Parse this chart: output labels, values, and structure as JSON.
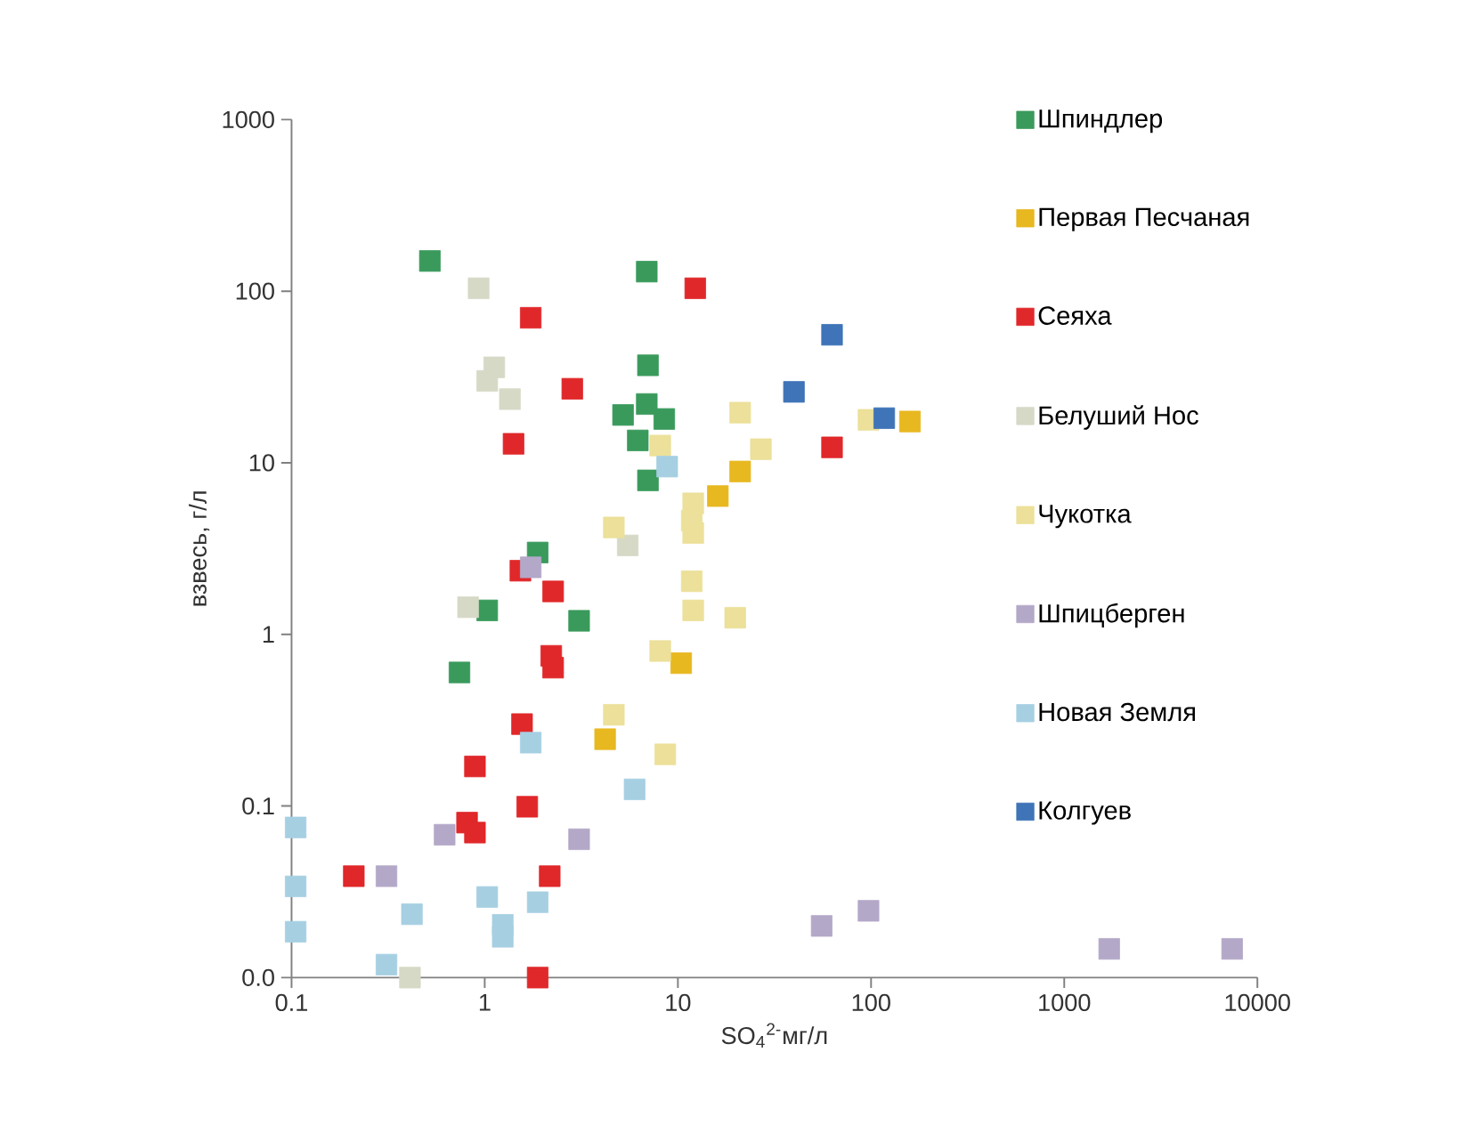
{
  "chart_data": {
    "type": "scatter",
    "xlabel": "SO$_{4}$$^{2-}$мг/л",
    "ylabel": "взвесь, г/л",
    "log": "xy",
    "xlim": [
      0.1,
      10000
    ],
    "ylim": [
      0.01,
      1000
    ],
    "xticks": [
      0.1,
      1,
      10,
      100,
      1000,
      10000
    ],
    "yticks": [
      {
        "value": 0.01,
        "label": "0.0"
      },
      0.1,
      1,
      10,
      100,
      1000
    ],
    "marker": "square",
    "legend": "top right",
    "series": [
      {
        "name": "Шпиндлер",
        "color": "#3a9a5c",
        "x": [
          0.52,
          6.9,
          7.0,
          5.2,
          6.9,
          8.5,
          6.2,
          7.0,
          1.88,
          1.03,
          3.08,
          0.74
        ],
        "values": [
          150,
          130,
          37,
          19,
          22,
          18,
          13.5,
          7.9,
          3.0,
          1.38,
          1.2,
          0.6
        ]
      },
      {
        "name": "Первая Песчаная",
        "color": "#e8b820",
        "x": [
          159,
          21,
          16.1,
          10.4,
          4.2
        ],
        "values": [
          17.4,
          8.9,
          6.4,
          0.68,
          0.245
        ]
      },
      {
        "name": "Сеяха",
        "color": "#e0282a",
        "x": [
          1.73,
          12.3,
          2.84,
          1.41,
          62.8,
          1.53,
          2.26,
          2.21,
          2.26,
          1.56,
          0.89,
          1.66,
          0.81,
          0.89,
          0.21,
          2.17,
          1.88
        ],
        "values": [
          70,
          104,
          27,
          12.9,
          12.3,
          2.35,
          1.78,
          0.75,
          0.64,
          0.3,
          0.17,
          0.099,
          0.08,
          0.07,
          0.039,
          0.039,
          0.01
        ]
      },
      {
        "name": "Белуший Нос",
        "color": "#d6d9c6",
        "x": [
          0.93,
          1.12,
          1.03,
          1.35,
          5.5,
          0.82,
          0.41
        ],
        "values": [
          104,
          36,
          30,
          23.5,
          3.3,
          1.44,
          0.01
        ]
      },
      {
        "name": "Чукотка",
        "color": "#ece09a",
        "x": [
          97,
          21,
          26.9,
          19.8,
          8.1,
          12,
          11.8,
          12,
          4.66,
          11.8,
          12,
          8.1,
          4.66,
          8.6
        ],
        "values": [
          17.8,
          19.6,
          12,
          1.25,
          12.6,
          5.8,
          4.6,
          3.9,
          4.2,
          2.04,
          1.38,
          0.8,
          0.34,
          0.2
        ]
      },
      {
        "name": "Шпицберген",
        "color": "#b4a8c8",
        "x": [
          1.73,
          0.62,
          3.08,
          0.31,
          55.5,
          97,
          1710,
          7400
        ],
        "values": [
          2.46,
          0.068,
          0.064,
          0.039,
          0.02,
          0.0245,
          0.0147,
          0.0147
        ]
      },
      {
        "name": "Новая Земля",
        "color": "#a6cfe2",
        "x": [
          8.8,
          1.73,
          5.97,
          0.105,
          0.105,
          0.105,
          0.42,
          1.03,
          1.88,
          1.24,
          1.24,
          0.31
        ],
        "values": [
          9.5,
          0.234,
          0.125,
          0.075,
          0.034,
          0.0185,
          0.0234,
          0.0295,
          0.0275,
          0.0203,
          0.0173,
          0.0119
        ]
      },
      {
        "name": "Колгуев",
        "color": "#3f74b8",
        "x": [
          62.8,
          39.9,
          117
        ],
        "values": [
          55.7,
          25.9,
          18.2
        ]
      }
    ]
  }
}
